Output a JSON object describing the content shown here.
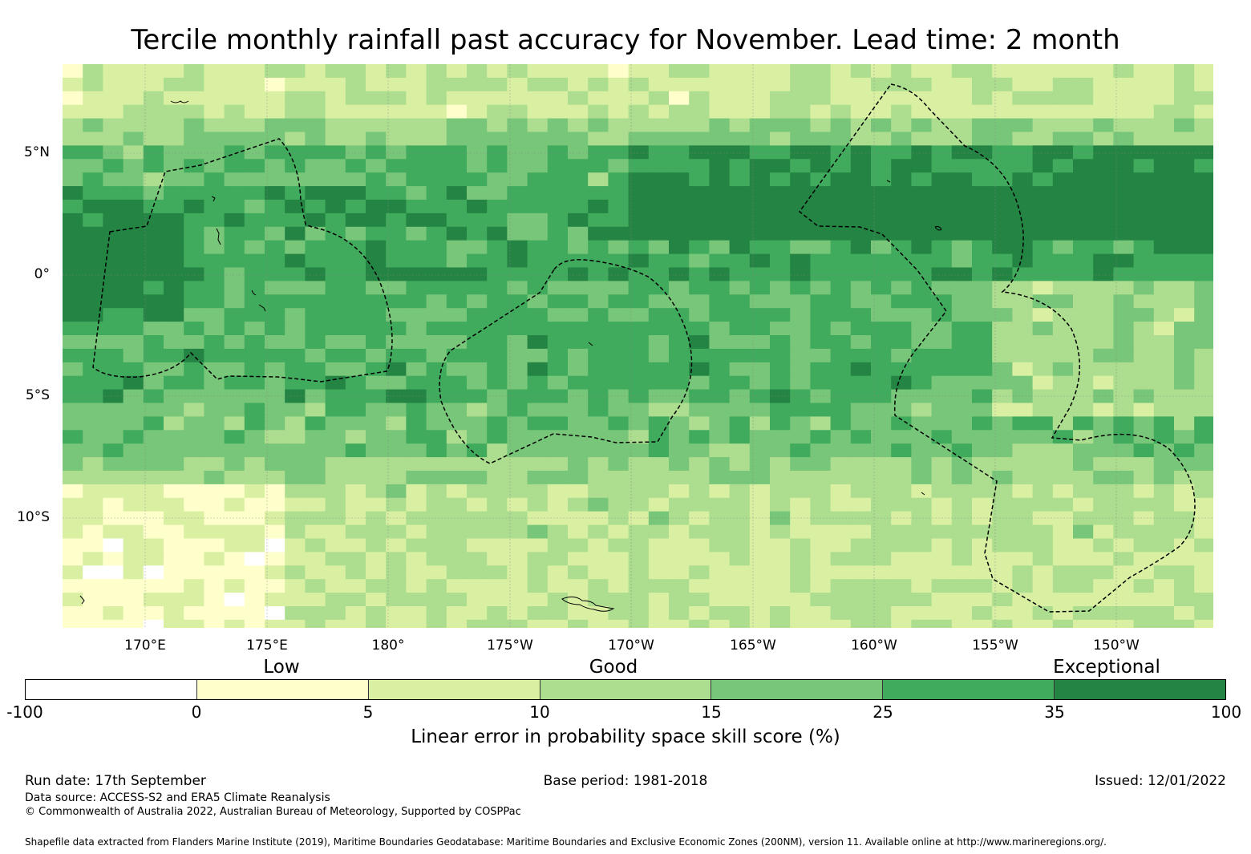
{
  "title": "Tercile monthly rainfall past accuracy for November. Lead time: 2 month",
  "map": {
    "region": "Central Pacific",
    "lat_labels": [
      "5°N",
      "0°",
      "5°S",
      "10°S"
    ],
    "lon_labels": [
      "170°E",
      "175°E",
      "180°",
      "175°W",
      "170°W",
      "165°W",
      "160°W",
      "155°W",
      "150°W"
    ],
    "colors": {
      "below0": "#ffffff",
      "b0_5": "#ffffcc",
      "b5_10": "#d9f0a3",
      "b10_15": "#addd8e",
      "b15_25": "#78c679",
      "b25_35": "#41ab5d",
      "b35_100": "#238443"
    }
  },
  "legend": {
    "categories": [
      "Low",
      "Good",
      "Exceptional"
    ],
    "ticks": [
      "-100",
      "0",
      "5",
      "10",
      "15",
      "25",
      "35",
      "100"
    ],
    "colors": [
      "#ffffff",
      "#ffffcc",
      "#d9f0a3",
      "#addd8e",
      "#78c679",
      "#41ab5d",
      "#238443"
    ],
    "label": "Linear error in probability space skill score (%)"
  },
  "footer": {
    "run_date": "Run date: 17th September",
    "base_period": "Base period: 1981-2018",
    "issued": "Issued: 12/01/2022",
    "data_source": "Data source: ACCESS-S2 and ERA5 Climate Reanalysis",
    "copyright": "© Commonwealth of Australia 2022, Australian Bureau of Meteorology, Supported by COSPPac",
    "shapefile": "Shapefile data extracted from Flanders Marine Institute (2019), Maritime Boundaries Geodatabase: Maritime Boundaries and Exclusive Economic Zones (200NM), version 11. Available online at http://www.marineregions.org/."
  }
}
